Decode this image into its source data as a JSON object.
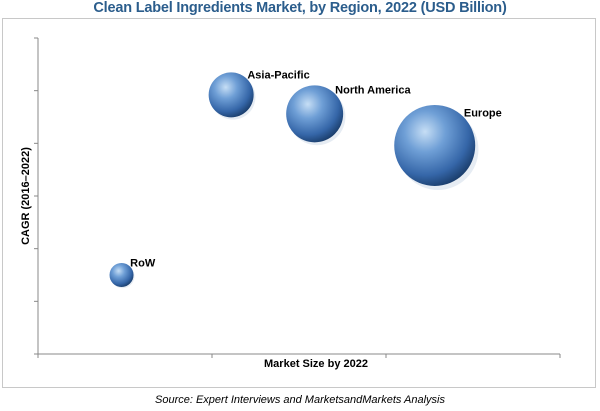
{
  "chart_data": {
    "type": "scatter",
    "title": "Clean Label Ingredients Market, by Region, 2022 (USD Billion)",
    "xlabel": "Market Size by 2022",
    "ylabel": "CAGR (2016–2022)",
    "xlim": [
      0,
      10
    ],
    "ylim": [
      0,
      10
    ],
    "grid": false,
    "series": [
      {
        "points": [
          {
            "label": "Asia-Pacific",
            "x": 3.7,
            "y": 8.2,
            "size": 4.5
          },
          {
            "label": "North America",
            "x": 5.3,
            "y": 7.6,
            "size": 5.7
          },
          {
            "label": "Europe",
            "x": 7.6,
            "y": 6.6,
            "size": 8.1
          },
          {
            "label": "RoW",
            "x": 1.6,
            "y": 2.5,
            "size": 2.4
          }
        ]
      }
    ],
    "colors": {
      "bubble_light": "#b9d6f2",
      "bubble_mid": "#4a7fc0",
      "bubble_dark": "#183a66",
      "title": "#2b5d8c"
    }
  },
  "source": "Source: Expert Interviews and MarketsandMarkets Analysis"
}
